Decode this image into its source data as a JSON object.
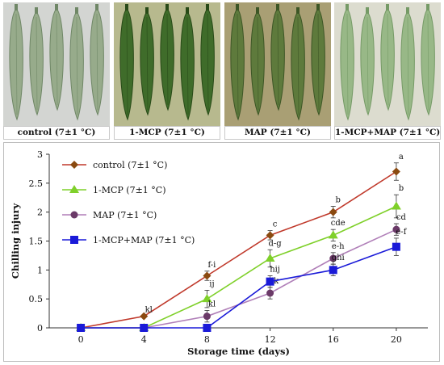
{
  "photos": [
    {
      "caption": "control (7±1 °C)",
      "bg": "#d3d5d2",
      "pod": "#97ab8b",
      "pod_dark": "#6f8766"
    },
    {
      "caption": "1-MCP (7±1 °C)",
      "bg": "#b7b98e",
      "pod": "#3f6c2a",
      "pod_dark": "#284a18"
    },
    {
      "caption": "MAP (7±1 °C)",
      "bg": "#a99f74",
      "pod": "#5e7a3c",
      "pod_dark": "#3d5626"
    },
    {
      "caption": "1-MCP+MAP (7±1 °C)",
      "bg": "#dcdccf",
      "pod": "#98b887",
      "pod_dark": "#759a66"
    }
  ],
  "chart_data": {
    "type": "line",
    "title": "",
    "xlabel": "Storage time (days)",
    "ylabel": "Chilling injury",
    "x": [
      0,
      4,
      8,
      12,
      16,
      20
    ],
    "xlim": [
      -2,
      22
    ],
    "ylim": [
      0,
      3
    ],
    "xticks": [
      "0",
      "4",
      "8",
      "12",
      "16",
      "20"
    ],
    "yticks": [
      "0",
      "0.5",
      "1",
      "1.5",
      "2",
      "2.5",
      "3"
    ],
    "grid": false,
    "legend_position": "top-left",
    "series": [
      {
        "name": "control (7±1 °C)",
        "color": "#c0392b",
        "marker": "diamond",
        "marker_color": "#8a4a10",
        "values": [
          0,
          0.2,
          0.9,
          1.6,
          2.0,
          2.7
        ],
        "errors": [
          0,
          0,
          0.08,
          0.08,
          0.1,
          0.15
        ],
        "labels": [
          "",
          "kl",
          "f-i",
          "c",
          "b",
          "a"
        ]
      },
      {
        "name": "1-MCP (7±1 °C)",
        "color": "#7fd02a",
        "marker": "triangle",
        "marker_color": "#7fd02a",
        "values": [
          0,
          0,
          0.5,
          1.2,
          1.6,
          2.1
        ],
        "errors": [
          0,
          0,
          0.15,
          0.15,
          0.1,
          0.2
        ],
        "labels": [
          "",
          "",
          "ij",
          "d-g",
          "cde",
          "b"
        ]
      },
      {
        "name": "MAP (7±1 °C)",
        "color": "#b07fb8",
        "marker": "circle",
        "marker_color": "#6b3a68",
        "values": [
          0,
          0,
          0.2,
          0.6,
          1.2,
          1.7
        ],
        "errors": [
          0,
          0,
          0.1,
          0.1,
          0.1,
          0.1
        ],
        "labels": [
          "",
          "",
          "kl",
          "jk",
          "e-h",
          "cd"
        ]
      },
      {
        "name": "1-MCP+MAP (7±1 °C)",
        "color": "#1a1ad8",
        "marker": "square",
        "marker_color": "#1a1ad8",
        "values": [
          0,
          0,
          0,
          0.8,
          1.0,
          1.4
        ],
        "errors": [
          0,
          0,
          0,
          0.1,
          0.1,
          0.15
        ],
        "labels": [
          "",
          "",
          "",
          "hij",
          "ghi",
          "e-f"
        ]
      }
    ]
  }
}
